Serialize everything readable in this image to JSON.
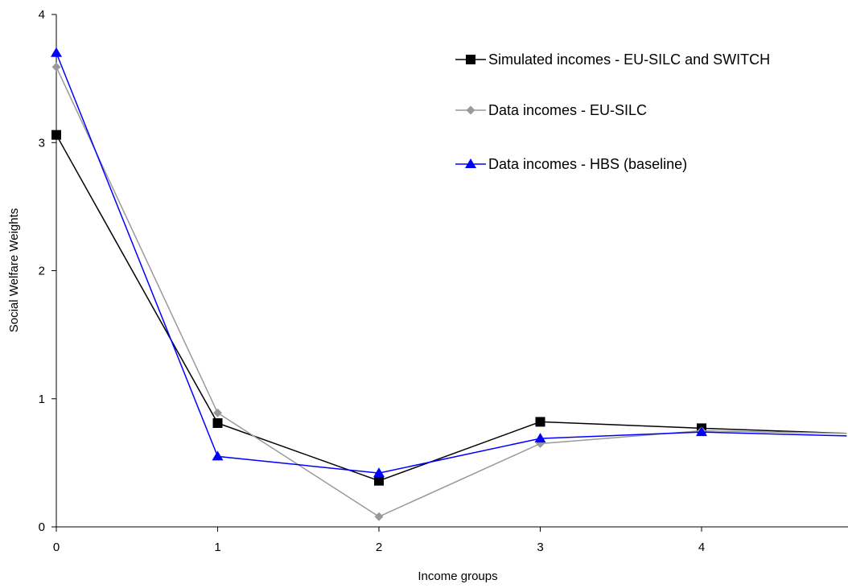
{
  "chart_data": {
    "type": "line",
    "xlabel": "Income groups",
    "ylabel": "Social Welfare Weights",
    "xlim": [
      0,
      4.9
    ],
    "ylim": [
      0,
      4
    ],
    "x_ticks": [
      0,
      1,
      2,
      3,
      4
    ],
    "y_ticks": [
      0,
      1,
      2,
      3,
      4
    ],
    "grid": false,
    "legend": "top-right",
    "series": [
      {
        "name": "Simulated incomes - EU-SILC and SWITCH",
        "color": "#000000",
        "marker": "square",
        "x": [
          0,
          1,
          2,
          3,
          4,
          4.9
        ],
        "values": [
          3.06,
          0.81,
          0.36,
          0.82,
          0.77,
          0.73
        ]
      },
      {
        "name": "Data incomes - EU-SILC",
        "color": "#999999",
        "marker": "diamond",
        "x": [
          0,
          1,
          2,
          3,
          4,
          4.9
        ],
        "values": [
          3.59,
          0.89,
          0.08,
          0.65,
          0.75,
          0.73
        ]
      },
      {
        "name": "Data incomes - HBS (baseline)",
        "color": "#0000ff",
        "marker": "triangle",
        "x": [
          0,
          1,
          2,
          3,
          4,
          4.9
        ],
        "values": [
          3.7,
          0.55,
          0.42,
          0.69,
          0.74,
          0.71
        ]
      }
    ]
  }
}
